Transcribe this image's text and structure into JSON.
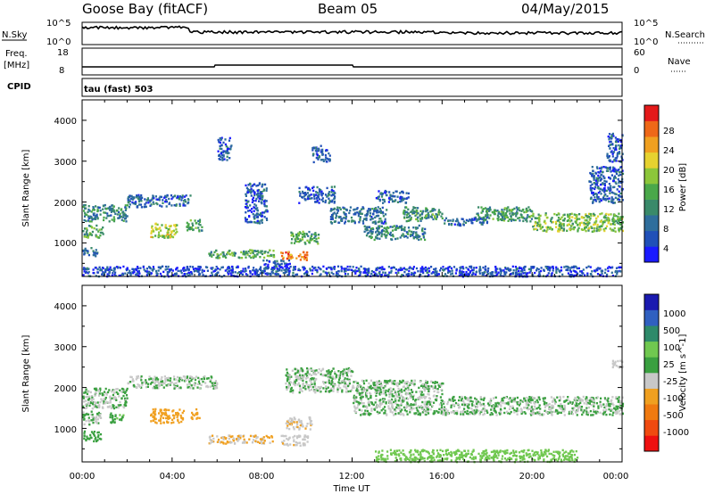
{
  "header": {
    "title": "Goose Bay (fitACF)",
    "beam": "Beam 05",
    "date": "04/May/2015"
  },
  "top_panels": {
    "nsky_label": "N.Sky",
    "nsearch_label": "N.Search",
    "nsky_ticks": [
      "10^5",
      "10^0"
    ],
    "nsearch_ticks": [
      "10^5",
      "10^0"
    ],
    "freq_label": "Freq.",
    "freq_unit": "[MHz]",
    "freq_ticks": [
      "18",
      "8"
    ],
    "nave_label": "Nave",
    "nave_ticks": [
      "60",
      "0"
    ],
    "cpid_label": "CPID",
    "cpid_value": "tau (fast) 503"
  },
  "x_ticks": [
    "00:00",
    "04:00",
    "08:00",
    "12:00",
    "16:00",
    "20:00",
    "00:00"
  ],
  "x_label": "Time UT",
  "colors": {
    "frame": "#000000",
    "background": "#ffffff"
  },
  "chart_data": [
    {
      "type": "heatmap",
      "name": "power",
      "ylabel": "Slant Range [km]",
      "yticks": [
        "4000",
        "3000",
        "2000",
        "1000"
      ],
      "ylim": [
        180,
        4500
      ],
      "xlim": [
        0,
        24
      ],
      "colorbar": {
        "label": "Power [dB]",
        "ticks": [
          "28",
          "24",
          "20",
          "16",
          "12",
          "8",
          "4"
        ],
        "range": [
          0,
          32
        ],
        "colors": [
          "#1a1aff",
          "#2050b8",
          "#2f6e9c",
          "#3a8a6a",
          "#4aa84a",
          "#8cc63a",
          "#e6d230",
          "#f0a020",
          "#ee6818",
          "#e41a1a"
        ]
      },
      "bands": [
        {
          "x": [
            0.0,
            2.0
          ],
          "y": [
            1550,
            1950
          ],
          "level": 10
        },
        {
          "x": [
            0.0,
            0.9
          ],
          "y": [
            1150,
            1450
          ],
          "level": 14
        },
        {
          "x": [
            0.0,
            0.7
          ],
          "y": [
            700,
            900
          ],
          "level": 8
        },
        {
          "x": [
            2.0,
            4.8
          ],
          "y": [
            1900,
            2200
          ],
          "level": 7
        },
        {
          "x": [
            3.0,
            4.2
          ],
          "y": [
            1150,
            1500
          ],
          "level": 18
        },
        {
          "x": [
            4.6,
            5.3
          ],
          "y": [
            1300,
            1600
          ],
          "level": 14
        },
        {
          "x": [
            5.6,
            8.5
          ],
          "y": [
            650,
            850
          ],
          "level": 14
        },
        {
          "x": [
            6.0,
            6.6
          ],
          "y": [
            3050,
            3600
          ],
          "level": 6
        },
        {
          "x": [
            7.2,
            8.2
          ],
          "y": [
            1500,
            2500
          ],
          "level": 6
        },
        {
          "x": [
            8.0,
            9.2
          ],
          "y": [
            250,
            600
          ],
          "level": 6
        },
        {
          "x": [
            8.8,
            10.0
          ],
          "y": [
            600,
            800
          ],
          "level": 26
        },
        {
          "x": [
            9.2,
            10.5
          ],
          "y": [
            1000,
            1300
          ],
          "level": 14
        },
        {
          "x": [
            9.6,
            11.2
          ],
          "y": [
            2000,
            2400
          ],
          "level": 6
        },
        {
          "x": [
            10.2,
            11.0
          ],
          "y": [
            3000,
            3400
          ],
          "level": 6
        },
        {
          "x": [
            11.0,
            13.5
          ],
          "y": [
            1500,
            1900
          ],
          "level": 8
        },
        {
          "x": [
            12.5,
            15.2
          ],
          "y": [
            1100,
            1450
          ],
          "level": 10
        },
        {
          "x": [
            13.0,
            14.5
          ],
          "y": [
            2000,
            2300
          ],
          "level": 6
        },
        {
          "x": [
            14.2,
            16.0
          ],
          "y": [
            1550,
            1900
          ],
          "level": 12
        },
        {
          "x": [
            16.0,
            18.0
          ],
          "y": [
            1450,
            1650
          ],
          "level": 7
        },
        {
          "x": [
            17.5,
            20.2
          ],
          "y": [
            1550,
            1900
          ],
          "level": 12
        },
        {
          "x": [
            20.0,
            24.0
          ],
          "y": [
            1300,
            1750
          ],
          "level": 16
        },
        {
          "x": [
            22.5,
            24.0
          ],
          "y": [
            2000,
            2900
          ],
          "level": 6
        },
        {
          "x": [
            23.3,
            24.0
          ],
          "y": [
            3000,
            3700
          ],
          "level": 6
        },
        {
          "x": [
            0.0,
            24.0
          ],
          "y": [
            200,
            450
          ],
          "level": 5
        }
      ]
    },
    {
      "type": "heatmap",
      "name": "velocity",
      "ylabel": "Slant Range [km]",
      "yticks": [
        "4000",
        "3000",
        "2000",
        "1000"
      ],
      "ylim": [
        180,
        4500
      ],
      "xlim": [
        0,
        24
      ],
      "colorbar": {
        "label": "Velocity [m s^-1]",
        "ticks": [
          "1000",
          "500",
          "100",
          "25",
          "-25",
          "-100",
          "-500",
          "-1000"
        ],
        "range": [
          -1200,
          1200
        ],
        "colors": [
          "#ee1010",
          "#f04a10",
          "#f07a10",
          "#f0a020",
          "#c8c8c8",
          "#3aa040",
          "#70c850",
          "#2e8a6a",
          "#3060c0",
          "#1a1ab0"
        ]
      },
      "bands": [
        {
          "x": [
            0.0,
            2.0
          ],
          "y": [
            1500,
            2000
          ],
          "level": 0
        },
        {
          "x": [
            0.0,
            0.8
          ],
          "y": [
            1100,
            1450
          ],
          "level": 0
        },
        {
          "x": [
            0.0,
            0.8
          ],
          "y": [
            700,
            950
          ],
          "level": 150
        },
        {
          "x": [
            1.2,
            1.8
          ],
          "y": [
            1150,
            1400
          ],
          "level": 200
        },
        {
          "x": [
            3.0,
            4.5
          ],
          "y": [
            1150,
            1500
          ],
          "level": -300
        },
        {
          "x": [
            2.0,
            6.0
          ],
          "y": [
            2000,
            2300
          ],
          "level": 0
        },
        {
          "x": [
            4.8,
            5.2
          ],
          "y": [
            1250,
            1500
          ],
          "level": -400
        },
        {
          "x": [
            5.6,
            8.5
          ],
          "y": [
            650,
            850
          ],
          "level": -250
        },
        {
          "x": [
            8.8,
            10.0
          ],
          "y": [
            600,
            850
          ],
          "level": -200
        },
        {
          "x": [
            9.0,
            10.2
          ],
          "y": [
            1000,
            1300
          ],
          "level": -200
        },
        {
          "x": [
            9.0,
            12.0
          ],
          "y": [
            1900,
            2500
          ],
          "level": 0
        },
        {
          "x": [
            12.0,
            16.0
          ],
          "y": [
            1350,
            2200
          ],
          "level": 0
        },
        {
          "x": [
            16.0,
            24.0
          ],
          "y": [
            1350,
            1800
          ],
          "level": 0
        },
        {
          "x": [
            23.5,
            24.0
          ],
          "y": [
            2500,
            2700
          ],
          "level": -150
        },
        {
          "x": [
            13.0,
            22.0
          ],
          "y": [
            200,
            500
          ],
          "level": 400
        }
      ]
    }
  ]
}
